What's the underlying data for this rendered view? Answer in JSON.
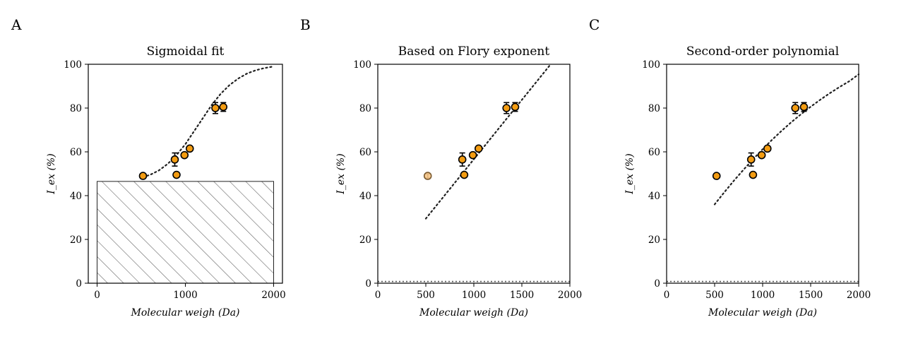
{
  "colors": {
    "point_fill": "#f39c12",
    "point_edge": "#000000",
    "outlier_fill": "#f8c88a",
    "outlier_edge": "#7a5a30",
    "fit_line": "#222222",
    "hatch": "#555555"
  },
  "chart_data": [
    {
      "panel_label": "A",
      "type": "scatter",
      "title": "Sigmoidal fit",
      "xlabel": "Molecular weigh (Da)",
      "ylabel": "I_ex (%)",
      "xlim": [
        -100,
        2100
      ],
      "ylim": [
        0,
        100
      ],
      "xticks": [
        0,
        1000,
        2000
      ],
      "yticks": [
        0,
        20,
        40,
        60,
        80,
        100
      ],
      "points": [
        {
          "x": 520,
          "y": 49,
          "err": 0
        },
        {
          "x": 880,
          "y": 56.5,
          "err": 3
        },
        {
          "x": 900,
          "y": 49.5,
          "err": 0
        },
        {
          "x": 990,
          "y": 58.5,
          "err": 0
        },
        {
          "x": 1050,
          "y": 61.5,
          "err": 0
        },
        {
          "x": 1340,
          "y": 80,
          "err": 2.5
        },
        {
          "x": 1430,
          "y": 80.5,
          "err": 2
        }
      ],
      "fit": {
        "kind": "sigmoid",
        "x": [
          520,
          600,
          700,
          800,
          900,
          1000,
          1100,
          1200,
          1300,
          1400,
          1500,
          1600,
          1700,
          1800,
          1900,
          2000
        ],
        "y": [
          48.5,
          49.5,
          51.5,
          54.5,
          58.5,
          63.5,
          69.5,
          75.5,
          81.5,
          86.5,
          90.5,
          93.5,
          95.8,
          97.3,
          98.3,
          99.0
        ]
      },
      "hatched_region": {
        "x": [
          0,
          2000
        ],
        "y": [
          0,
          46.5
        ]
      },
      "baseline": null
    },
    {
      "panel_label": "B",
      "type": "scatter",
      "title": "Based on Flory exponent",
      "xlabel": "Molecular weigh (Da)",
      "ylabel": "I_ex (%)",
      "xlim": [
        0,
        2000
      ],
      "ylim": [
        0,
        100
      ],
      "xticks": [
        0,
        500,
        1000,
        1500,
        2000
      ],
      "yticks": [
        0,
        20,
        40,
        60,
        80,
        100
      ],
      "points": [
        {
          "x": 880,
          "y": 56.5,
          "err": 3
        },
        {
          "x": 900,
          "y": 49.5,
          "err": 0
        },
        {
          "x": 990,
          "y": 58.5,
          "err": 0
        },
        {
          "x": 1050,
          "y": 61.5,
          "err": 0
        },
        {
          "x": 1340,
          "y": 80,
          "err": 2.5
        },
        {
          "x": 1430,
          "y": 80.5,
          "err": 2
        }
      ],
      "outliers": [
        {
          "x": 520,
          "y": 49,
          "err": 1
        }
      ],
      "fit": {
        "kind": "line",
        "x": [
          500,
          1800
        ],
        "y": [
          29.5,
          100
        ]
      },
      "hatched_region": null,
      "baseline": 0.8
    },
    {
      "panel_label": "C",
      "type": "scatter",
      "title": "Second-order polynomial",
      "xlabel": "Molecular weigh (Da)",
      "ylabel": "I_ex (%)",
      "xlim": [
        0,
        2000
      ],
      "ylim": [
        0,
        100
      ],
      "xticks": [
        0,
        500,
        1000,
        1500,
        2000
      ],
      "yticks": [
        0,
        20,
        40,
        60,
        80,
        100
      ],
      "points": [
        {
          "x": 520,
          "y": 49,
          "err": 0
        },
        {
          "x": 880,
          "y": 56.5,
          "err": 3
        },
        {
          "x": 900,
          "y": 49.5,
          "err": 0
        },
        {
          "x": 990,
          "y": 58.5,
          "err": 0
        },
        {
          "x": 1050,
          "y": 61.5,
          "err": 0
        },
        {
          "x": 1340,
          "y": 80,
          "err": 2.5
        },
        {
          "x": 1430,
          "y": 80.5,
          "err": 2
        }
      ],
      "fit": {
        "kind": "polynomial",
        "x": [
          500,
          600,
          700,
          800,
          900,
          1000,
          1100,
          1200,
          1300,
          1400,
          1500,
          1600,
          1700,
          1800,
          1900,
          2000
        ],
        "y": [
          36,
          41.5,
          46.8,
          51.8,
          56.6,
          61.2,
          65.6,
          69.7,
          73.6,
          77.2,
          80.6,
          83.8,
          86.8,
          89.6,
          92.2,
          95.4
        ]
      },
      "hatched_region": null,
      "baseline": 0.8
    }
  ]
}
